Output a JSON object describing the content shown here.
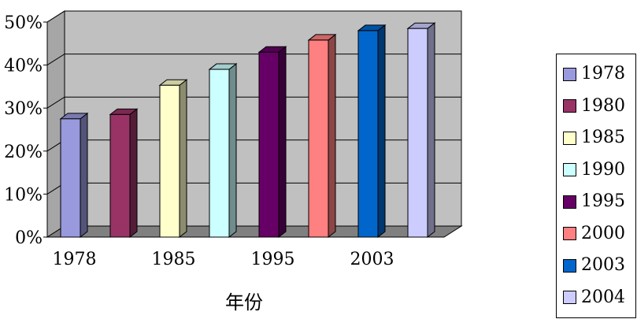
{
  "chart_data": {
    "type": "bar",
    "categories": [
      "1978",
      "1980",
      "1985",
      "1990",
      "1995",
      "2000",
      "2003",
      "2004"
    ],
    "values": [
      27.5,
      28.5,
      35.3,
      39.0,
      43.0,
      45.8,
      48.0,
      48.5
    ],
    "colors": [
      "#9999dd",
      "#993366",
      "#ffffcc",
      "#ccffff",
      "#660066",
      "#ff8080",
      "#0066cc",
      "#ccccff"
    ],
    "x_tick_labels": [
      "1978",
      "1985",
      "1995",
      "2003"
    ],
    "y_tick_labels": [
      "0%",
      "10%",
      "20%",
      "30%",
      "40%",
      "50%"
    ],
    "xlabel": "年份",
    "ylabel": "",
    "ylim": [
      0,
      50
    ],
    "y_unit": "%",
    "grid": true,
    "legend_position": "right",
    "background_color": "#c0c0c0"
  },
  "legend": {
    "items": [
      {
        "label": "1978",
        "color": "#9999dd"
      },
      {
        "label": "1980",
        "color": "#993366"
      },
      {
        "label": "1985",
        "color": "#ffffcc"
      },
      {
        "label": "1990",
        "color": "#ccffff"
      },
      {
        "label": "1995",
        "color": "#660066"
      },
      {
        "label": "2000",
        "color": "#ff8080"
      },
      {
        "label": "2003",
        "color": "#0066cc"
      },
      {
        "label": "2004",
        "color": "#ccccff"
      }
    ]
  }
}
